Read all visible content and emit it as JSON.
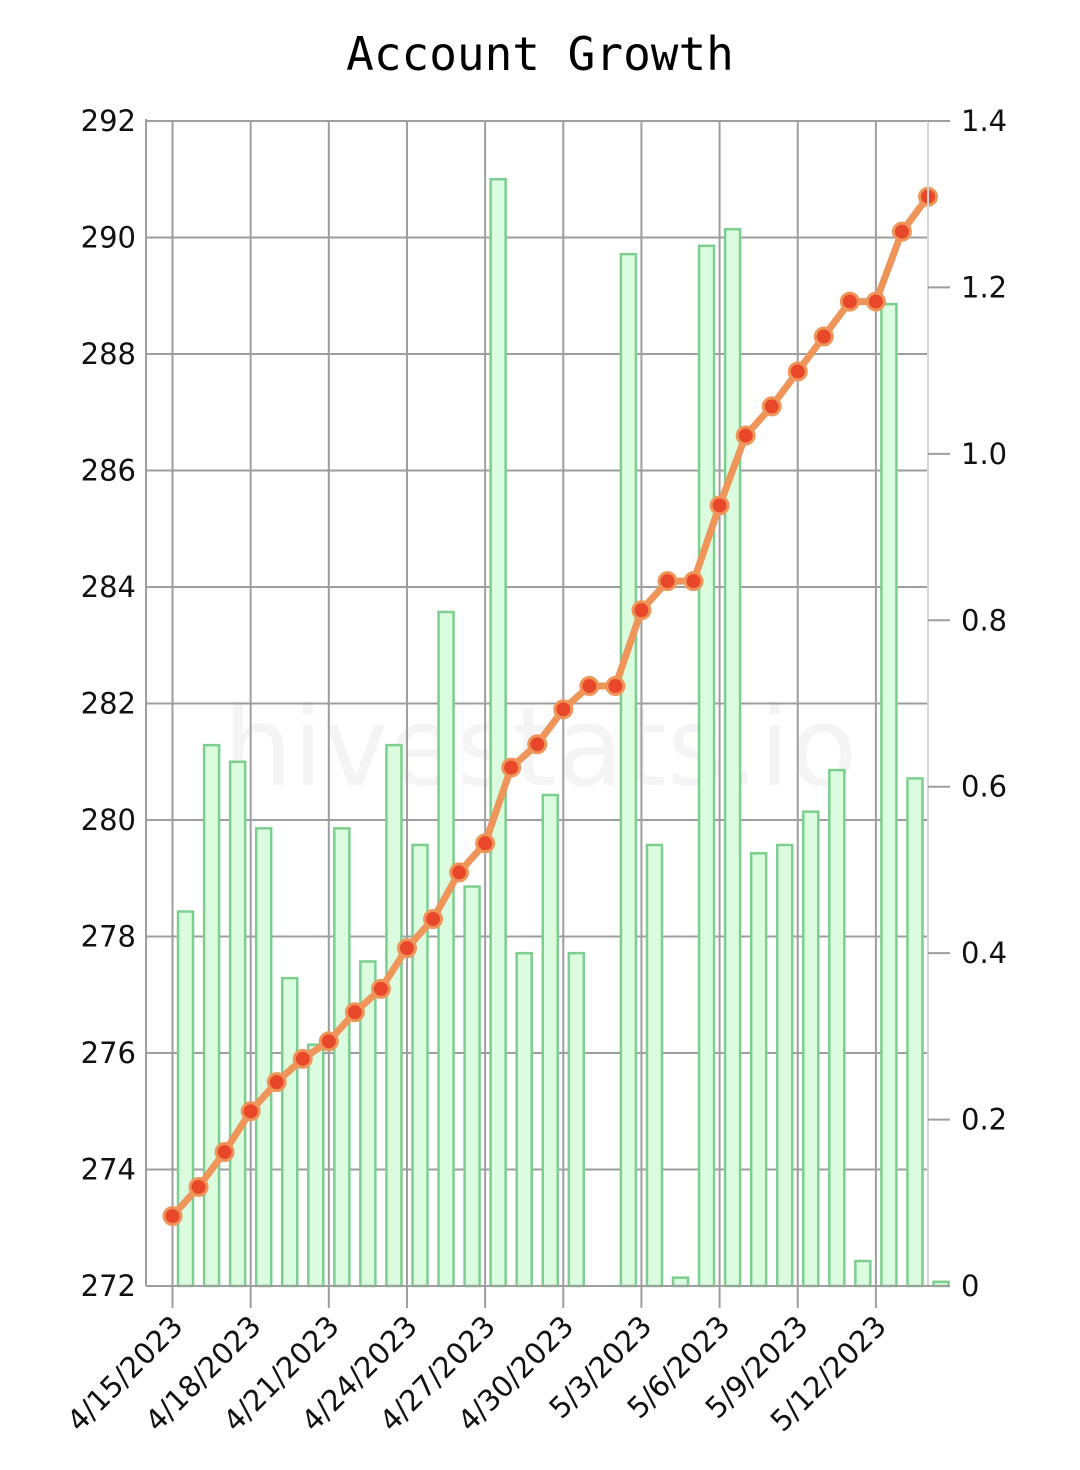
{
  "chart_data": {
    "type": "bar+line",
    "title": "Account Growth",
    "watermark": "hivestats.io",
    "dates": [
      "4/15/2023",
      "4/16/2023",
      "4/17/2023",
      "4/18/2023",
      "4/19/2023",
      "4/20/2023",
      "4/21/2023",
      "4/22/2023",
      "4/23/2023",
      "4/24/2023",
      "4/25/2023",
      "4/26/2023",
      "4/27/2023",
      "4/28/2023",
      "4/29/2023",
      "4/30/2023",
      "5/1/2023",
      "5/2/2023",
      "5/3/2023",
      "5/4/2023",
      "5/5/2023",
      "5/6/2023",
      "5/7/2023",
      "5/8/2023",
      "5/9/2023",
      "5/10/2023",
      "5/11/2023",
      "5/12/2023",
      "5/13/2023",
      "5/14/2023"
    ],
    "x_tick_labels": [
      "4/15/2023",
      "4/18/2023",
      "4/21/2023",
      "4/24/2023",
      "4/27/2023",
      "4/30/2023",
      "5/3/2023",
      "5/6/2023",
      "5/9/2023",
      "5/12/2023"
    ],
    "line_series": {
      "axis": "left",
      "color": "#f0955a",
      "marker_color": "#e8472a",
      "values": [
        273.2,
        273.7,
        274.3,
        275.0,
        275.5,
        275.9,
        276.2,
        276.7,
        277.1,
        277.8,
        278.3,
        279.1,
        279.6,
        280.9,
        281.3,
        281.9,
        282.3,
        282.3,
        283.6,
        284.1,
        284.1,
        285.4,
        286.6,
        287.1,
        287.7,
        288.3,
        288.9,
        288.9,
        290.1,
        290.7
      ]
    },
    "bar_series": {
      "axis": "right",
      "color": "#dcfce0",
      "stroke": "#7ccf8e",
      "values": [
        0.45,
        0.65,
        0.63,
        0.55,
        0.37,
        0.29,
        0.55,
        0.39,
        0.65,
        0.53,
        0.81,
        0.48,
        1.33,
        0.4,
        0.59,
        0.4,
        0,
        1.24,
        0.53,
        0.01,
        1.25,
        1.27,
        0.52,
        0.53,
        0.57,
        0.62,
        0.03,
        1.18,
        0.61,
        0.005
      ]
    },
    "left_axis": {
      "ylim": [
        272,
        292
      ],
      "ticks": [
        "272",
        "274",
        "276",
        "278",
        "280",
        "282",
        "284",
        "286",
        "288",
        "290",
        "292"
      ]
    },
    "right_axis": {
      "ylim": [
        0,
        1.4
      ],
      "ticks": [
        "0",
        "0.2",
        "0.4",
        "0.6",
        "0.8",
        "1.0",
        "1.2",
        "1.4"
      ]
    },
    "grid": true,
    "legend": "none"
  }
}
